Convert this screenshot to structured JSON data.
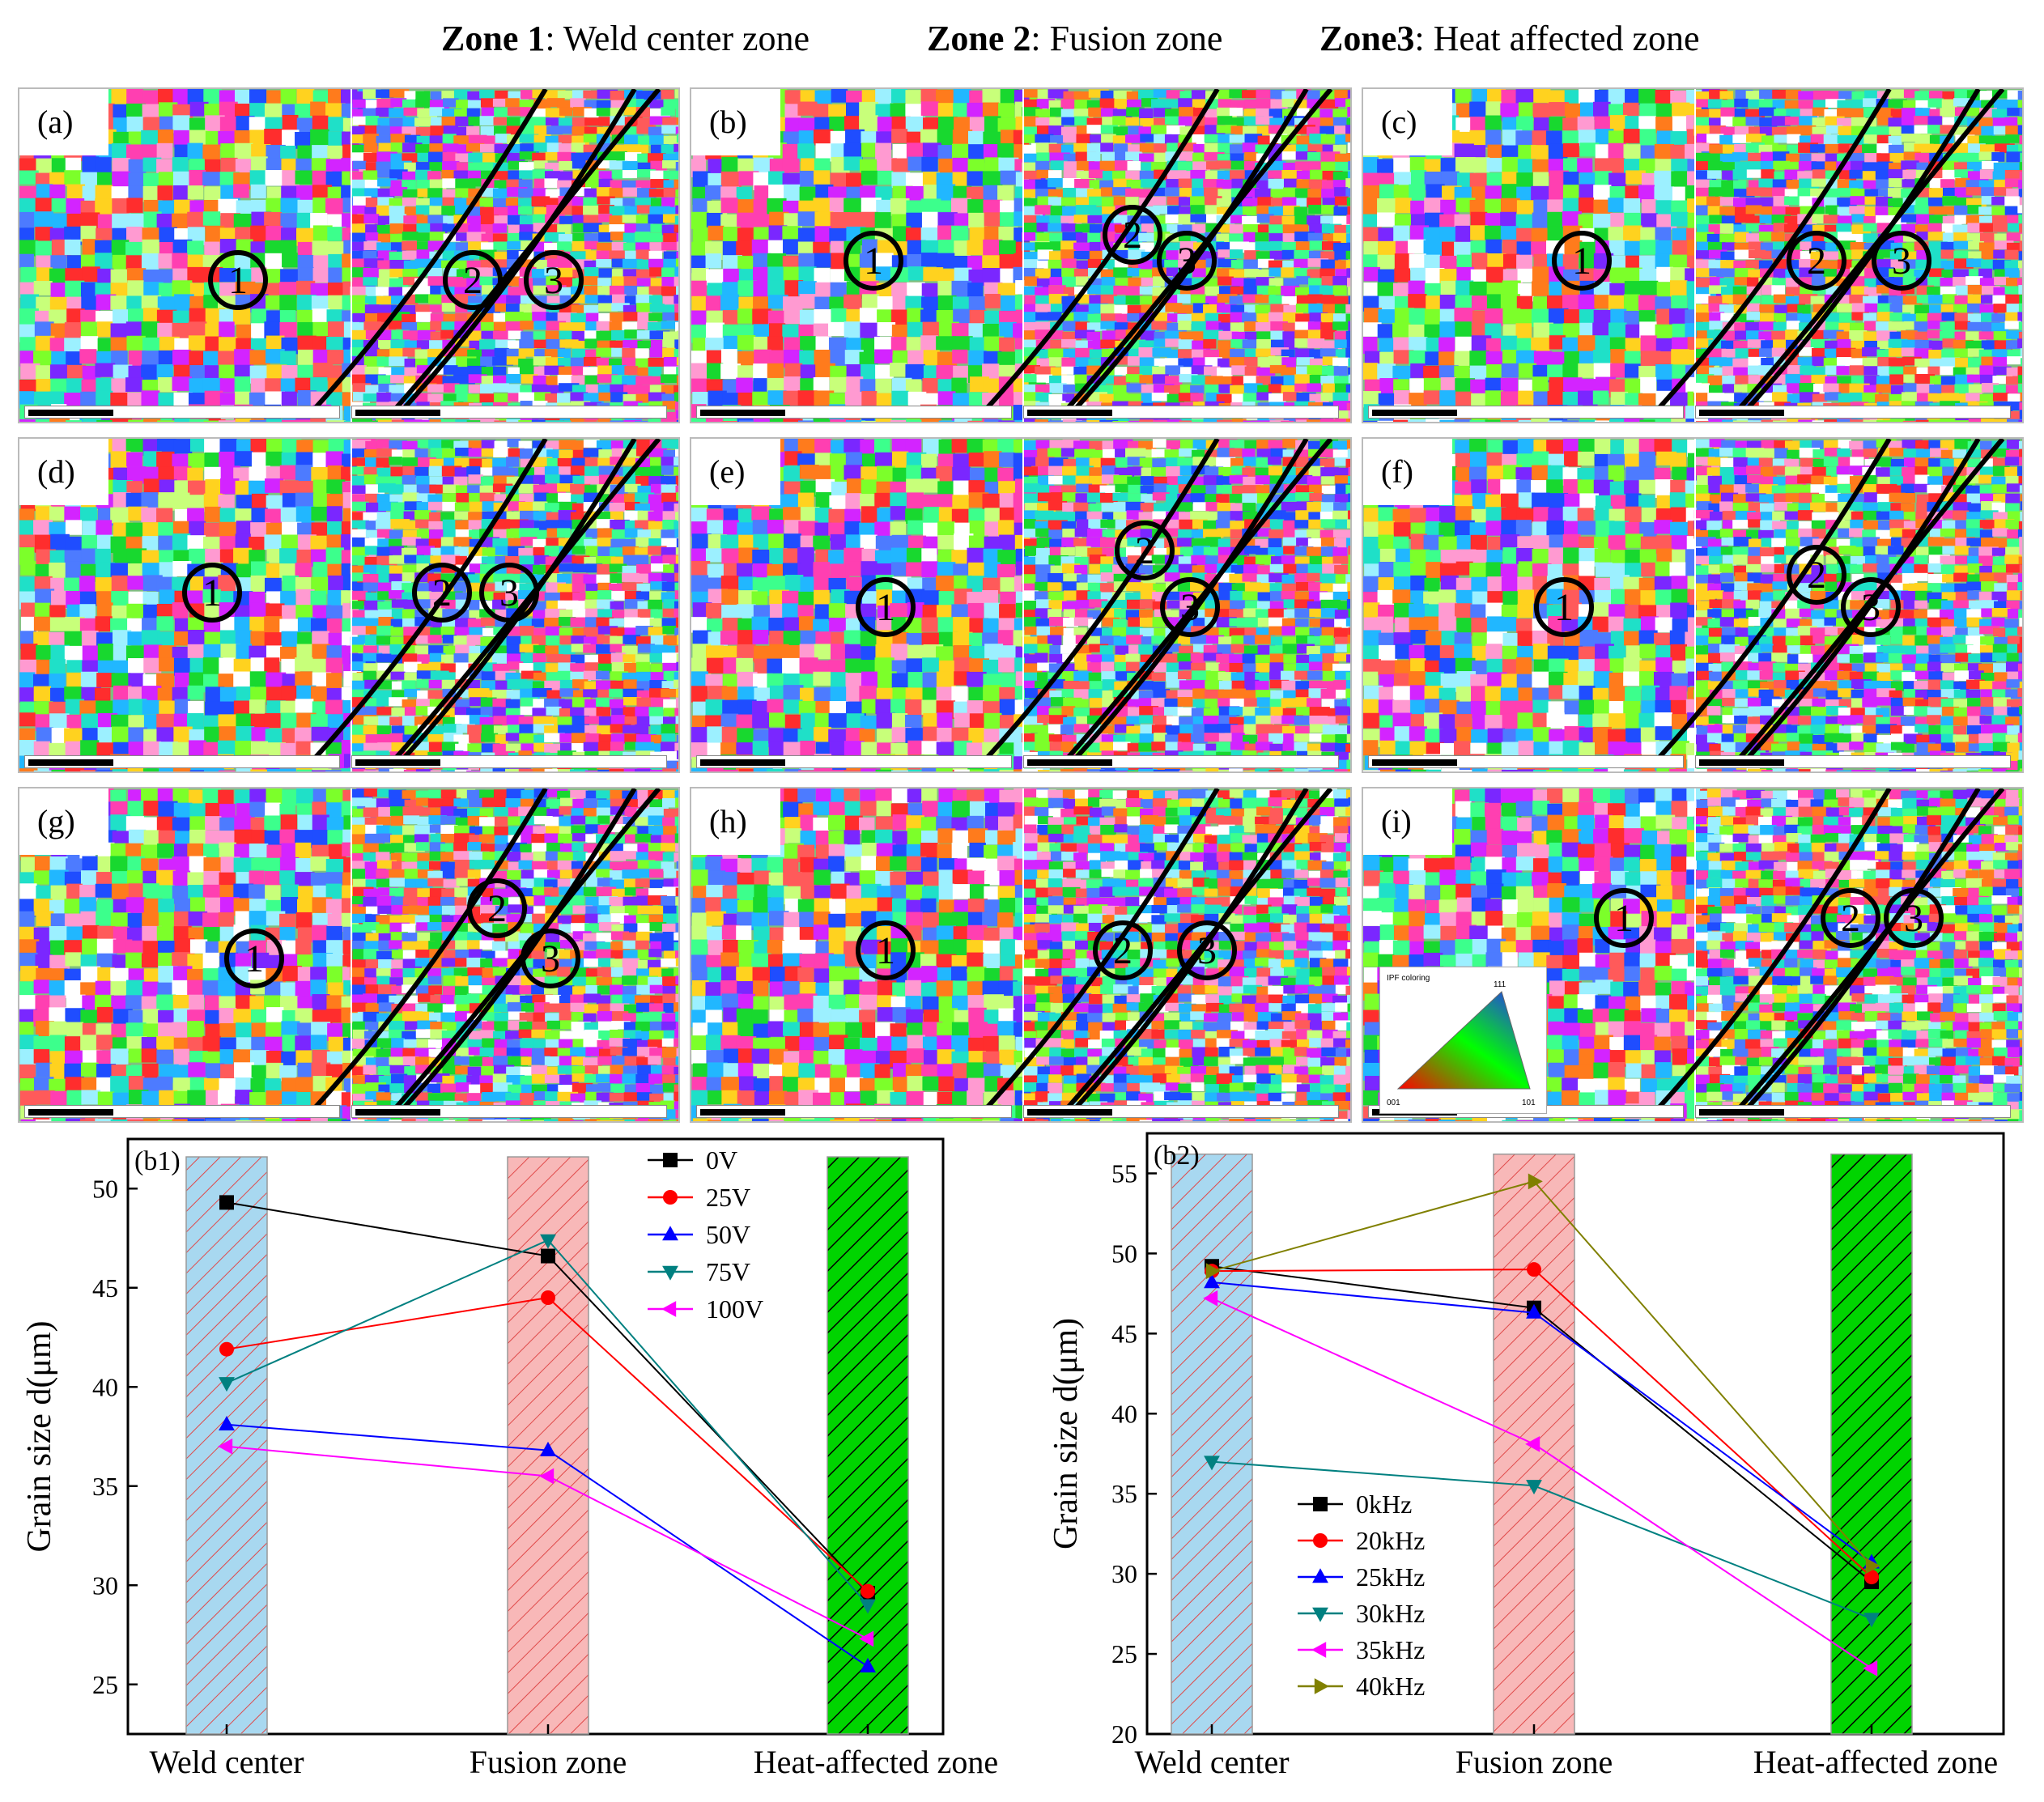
{
  "header": {
    "zones": [
      {
        "bold": "Zone 1",
        "rest": ": Weld  center  zone"
      },
      {
        "bold": "Zone 2",
        "rest": ": Fusion zone"
      },
      {
        "bold": "Zone3",
        "rest": ": Heat affected zone"
      }
    ]
  },
  "panels": [
    {
      "letter": "(a)"
    },
    {
      "letter": "(b)"
    },
    {
      "letter": "(c)"
    },
    {
      "letter": "(d)"
    },
    {
      "letter": "(e)"
    },
    {
      "letter": "(f)"
    },
    {
      "letter": "(g)"
    },
    {
      "letter": "(h)"
    },
    {
      "letter": "(i)"
    }
  ],
  "zone_markers": [
    "1",
    "2",
    "3"
  ],
  "ipf_legend": {
    "title": "IPF coloring",
    "corners": [
      "001",
      "101",
      "111"
    ]
  },
  "chart_data": [
    {
      "type": "line",
      "panel_label": "(b1)",
      "categories": [
        "Weld center",
        "Fusion zone",
        "Heat-affected zone"
      ],
      "ylabel": "Grain size d(μm)",
      "ylim": [
        22.5,
        52.5
      ],
      "yticks": [
        25,
        30,
        35,
        40,
        45,
        50
      ],
      "bar_top": 51.6,
      "series": [
        {
          "name": "0V",
          "color": "#000000",
          "marker": "square",
          "values": [
            49.3,
            46.6,
            29.6
          ]
        },
        {
          "name": "25V",
          "color": "#ff0000",
          "marker": "circle",
          "values": [
            41.9,
            44.5,
            29.7
          ]
        },
        {
          "name": "50V",
          "color": "#0000ff",
          "marker": "triangle-up",
          "values": [
            38.1,
            36.8,
            25.9
          ]
        },
        {
          "name": "75V",
          "color": "#008080",
          "marker": "triangle-down",
          "values": [
            40.2,
            47.4,
            29.0
          ]
        },
        {
          "name": "100V",
          "color": "#ff00ff",
          "marker": "triangle-left",
          "values": [
            37.0,
            35.5,
            27.3
          ]
        }
      ]
    },
    {
      "type": "line",
      "panel_label": "(b2)",
      "categories": [
        "Weld center",
        "Fusion zone",
        "Heat-affected zone"
      ],
      "ylabel": "Grain size d(μm)",
      "ylim": [
        20,
        57.5
      ],
      "yticks": [
        20,
        25,
        30,
        35,
        40,
        45,
        50,
        55
      ],
      "bar_top": 56.2,
      "series": [
        {
          "name": "0kHz",
          "color": "#000000",
          "marker": "square",
          "values": [
            49.2,
            46.6,
            29.5
          ]
        },
        {
          "name": "20kHz",
          "color": "#ff0000",
          "marker": "circle",
          "values": [
            48.9,
            49.0,
            29.8
          ]
        },
        {
          "name": "25kHz",
          "color": "#0000ff",
          "marker": "triangle-up",
          "values": [
            48.2,
            46.3,
            30.7
          ]
        },
        {
          "name": "30kHz",
          "color": "#008080",
          "marker": "triangle-down",
          "values": [
            37.0,
            35.5,
            27.2
          ]
        },
        {
          "name": "35kHz",
          "color": "#ff00ff",
          "marker": "triangle-left",
          "values": [
            47.2,
            38.1,
            24.1
          ]
        },
        {
          "name": "40kHz",
          "color": "#808000",
          "marker": "triangle-right",
          "values": [
            48.9,
            54.5,
            30.5
          ]
        }
      ]
    }
  ]
}
